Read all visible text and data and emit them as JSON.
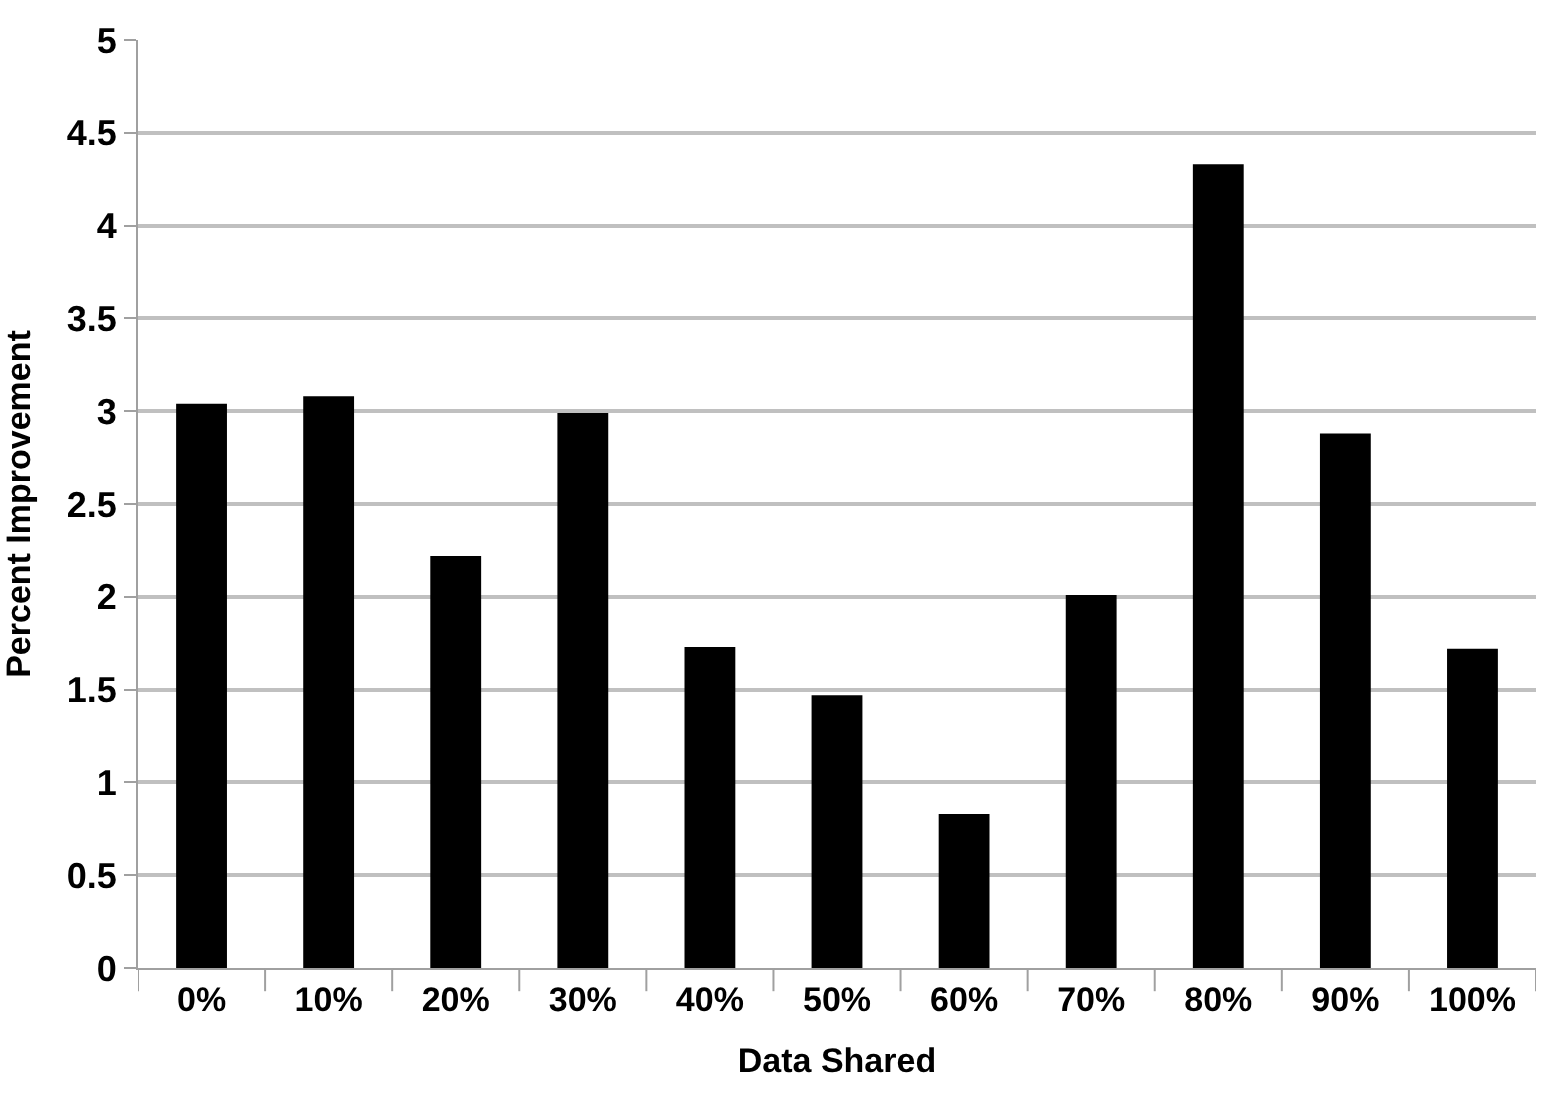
{
  "chart_data": {
    "type": "bar",
    "xlabel": "Data Shared",
    "ylabel": "Percent Improvement",
    "categories": [
      "0%",
      "10%",
      "20%",
      "30%",
      "40%",
      "50%",
      "60%",
      "70%",
      "80%",
      "90%",
      "100%"
    ],
    "values": [
      3.04,
      3.08,
      2.22,
      2.99,
      1.73,
      1.47,
      0.83,
      2.01,
      4.33,
      2.88,
      1.72
    ],
    "color": "#000000",
    "ylim": [
      0,
      5
    ],
    "yticks": [
      0,
      0.5,
      1,
      1.5,
      2,
      2.5,
      3,
      3.5,
      4,
      4.5,
      5
    ],
    "grid": "y",
    "legend": false
  }
}
